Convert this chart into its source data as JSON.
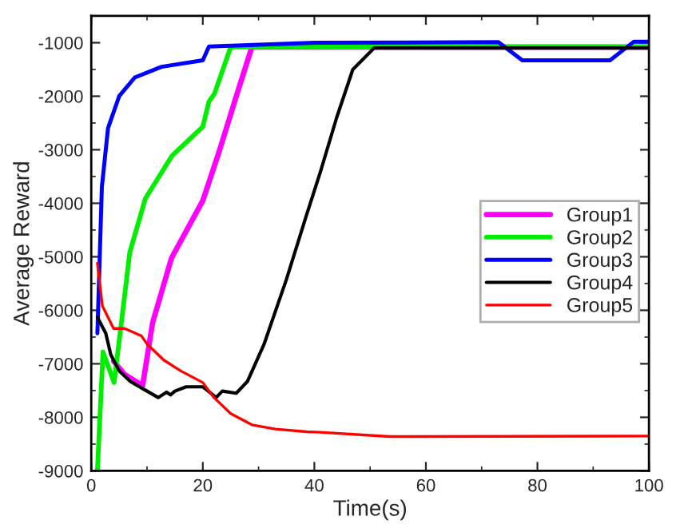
{
  "chart_data": {
    "type": "line",
    "xlabel": "Time(s)",
    "ylabel": "Average Reward",
    "xlim": [
      0,
      100
    ],
    "ylim": [
      -9000,
      -500
    ],
    "xticks": [
      0,
      20,
      40,
      60,
      80,
      100
    ],
    "yticks": [
      -9000,
      -8000,
      -7000,
      -6000,
      -5000,
      -4000,
      -3000,
      -2000,
      -1000
    ],
    "grid": false,
    "legend": "right",
    "marker": "none",
    "line_style": "solid",
    "series": [
      {
        "name": "Group1",
        "color": "#ff00ff",
        "x": [
          4,
          6,
          9.2,
          11,
          14.4,
          20,
          23,
          26,
          28.8,
          100
        ],
        "values": [
          -6950,
          -7200,
          -7410,
          -6230,
          -5020,
          -3950,
          -3010,
          -2000,
          -1080,
          -1080
        ]
      },
      {
        "name": "Group2",
        "color": "#00ee00",
        "x": [
          1.1,
          2.1,
          4.1,
          5.4,
          6.9,
          9.7,
          14.5,
          20,
          21.1,
          22.1,
          25,
          100
        ],
        "values": [
          -9000,
          -6780,
          -7350,
          -6230,
          -4920,
          -3910,
          -3110,
          -2570,
          -2100,
          -1950,
          -1080,
          -1080
        ]
      },
      {
        "name": "Group3",
        "color": "#0000ff",
        "x": [
          1.1,
          1.9,
          3,
          5,
          7.8,
          12.6,
          20,
          21.1,
          40,
          73,
          77.3,
          93,
          97.3,
          100
        ],
        "values": [
          -6430,
          -3700,
          -2600,
          -2000,
          -1650,
          -1450,
          -1330,
          -1070,
          -1000,
          -990,
          -1330,
          -1330,
          -980,
          -980
        ]
      },
      {
        "name": "Group4",
        "color": "#000000",
        "x": [
          1.1,
          2.6,
          3.5,
          5,
          7,
          9.5,
          12,
          13.5,
          14.2,
          15,
          17,
          20,
          22.4,
          23.5,
          26,
          28,
          31,
          35,
          38.6,
          41.1,
          44,
          46.9,
          50.7,
          100
        ],
        "values": [
          -6130,
          -6430,
          -6830,
          -7130,
          -7330,
          -7480,
          -7630,
          -7530,
          -7580,
          -7510,
          -7430,
          -7430,
          -7630,
          -7510,
          -7550,
          -7330,
          -6630,
          -5420,
          -4220,
          -3410,
          -2400,
          -1500,
          -1100,
          -1100
        ]
      },
      {
        "name": "Group5",
        "color": "#ff0000",
        "x": [
          1.1,
          2,
          4,
          6,
          9,
          10,
          13,
          16,
          20,
          22,
          25,
          28.8,
          33,
          38.6,
          41,
          53.5,
          100
        ],
        "values": [
          -5120,
          -5920,
          -6340,
          -6340,
          -6480,
          -6630,
          -6930,
          -7130,
          -7350,
          -7630,
          -7930,
          -8140,
          -8220,
          -8270,
          -8280,
          -8360,
          -8350
        ]
      }
    ]
  }
}
